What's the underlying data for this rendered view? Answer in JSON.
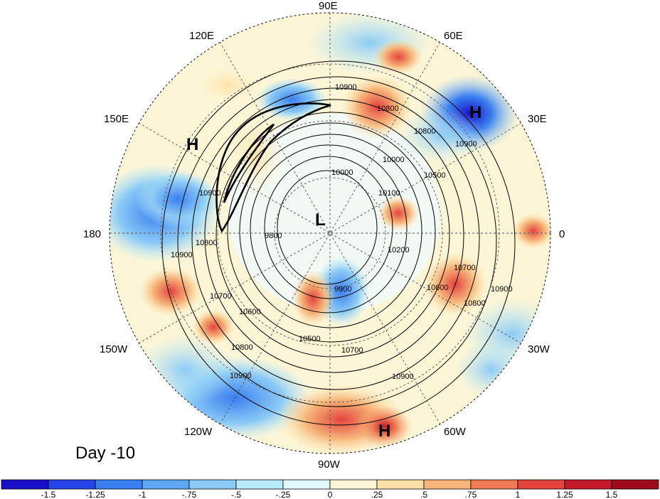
{
  "title": "Day -10",
  "longitude_labels": [
    "90E",
    "60E",
    "30E",
    "0",
    "30W",
    "60W",
    "90W",
    "120W",
    "150W",
    "180",
    "150E",
    "120E"
  ],
  "pressure_centers": [
    {
      "label": "H",
      "region": "near Urals"
    },
    {
      "label": "H",
      "region": "east Siberia"
    },
    {
      "label": "L",
      "region": "pole / Canadian archipelago"
    },
    {
      "label": "H",
      "region": "Central America"
    }
  ],
  "contour_labels": [
    "10900",
    "10800",
    "10700",
    "10600",
    "10500",
    "10000",
    "9900",
    "9800",
    "10100",
    "10200"
  ],
  "colorbar": {
    "tick_labels": [
      "-1.5",
      "-1.25",
      "-1",
      "-.75",
      "-.5",
      "-.25",
      "0",
      ".25",
      ".5",
      ".75",
      "1",
      "1.25",
      "1.5"
    ],
    "colors": [
      "#1a0fc8",
      "#2545e8",
      "#3a7ff0",
      "#5ca6f2",
      "#8ccaf6",
      "#b8eafa",
      "#e2f8fd",
      "#fdf6d6",
      "#fbe1a8",
      "#f7b57a",
      "#ef7a55",
      "#e4443e",
      "#c4192a",
      "#9e0a1c"
    ]
  },
  "map_colors": {
    "circle_bg": "#fdf3dc",
    "land": "none",
    "gridline": "#555555"
  }
}
